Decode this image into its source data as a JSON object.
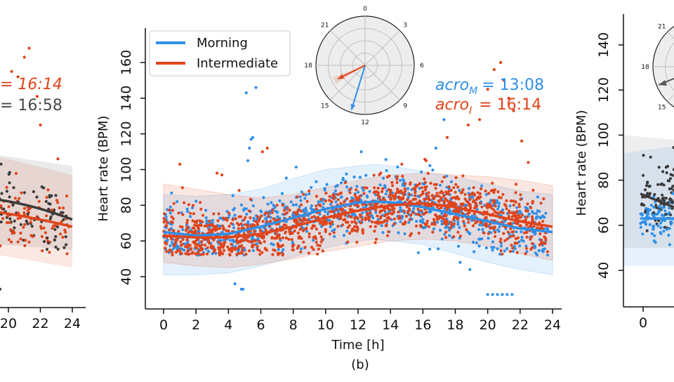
{
  "chart_data": [
    {
      "type": "scatter",
      "panel": "left (partial)",
      "ylabel": "",
      "xlabel": "",
      "x_ticks_visible": [
        "20",
        "22",
        "24"
      ],
      "annotations": [
        {
          "text": "= 16:14",
          "color": "#e0441b"
        },
        {
          "text": "= 16:58",
          "color": "#4a4a4a"
        }
      ],
      "series": [
        {
          "color": "#e0441b",
          "fit_min": 68,
          "fit_max": 82,
          "acrophase": "16:14"
        },
        {
          "color": "#3b3b3b",
          "fit_min": 72,
          "fit_max": 84,
          "acrophase": "16:58"
        }
      ]
    },
    {
      "type": "scatter",
      "panel": "b",
      "caption": "(b)",
      "xlabel": "Time [h]",
      "ylabel": "Heart rate (BPM)",
      "xlim": [
        -1,
        24.5
      ],
      "ylim": [
        27,
        175
      ],
      "x_ticks": [
        0,
        2,
        4,
        6,
        8,
        10,
        12,
        14,
        16,
        18,
        20,
        22,
        24
      ],
      "y_ticks": [
        40,
        60,
        80,
        100,
        120,
        140,
        160
      ],
      "legend": {
        "placement": "top-left",
        "entries": [
          "Morning",
          "Intermediate"
        ]
      },
      "series": [
        {
          "name": "Morning",
          "color": "#2f8fe8",
          "fit": {
            "x": [
              0,
              2,
              4,
              6,
              8,
              10,
              12,
              13.13,
              14,
              16,
              18,
              20,
              22,
              24
            ],
            "y": [
              65,
              63,
              64,
              68,
              73,
              78,
              81.5,
              82,
              81.7,
              79,
              75,
              71,
              67,
              65
            ]
          },
          "band_upper": [
            86,
            85,
            86,
            89,
            95,
            100,
            102,
            103,
            102,
            99,
            96,
            92,
            88,
            86
          ],
          "band_lower": [
            41,
            41,
            42,
            46,
            51,
            56,
            60,
            61,
            60,
            58,
            53,
            48,
            44,
            41
          ],
          "acrophase_label": "acro",
          "acrophase_subscript": "M",
          "acrophase_value": "= 13:08"
        },
        {
          "name": "Intermediate",
          "color": "#e0441b",
          "fit": {
            "x": [
              0,
              2,
              4,
              6,
              8,
              10,
              12,
              14,
              16,
              16.23,
              18,
              20,
              22,
              24
            ],
            "y": [
              63,
              62,
              62,
              64,
              68,
              73,
              77,
              80,
              81,
              81,
              79,
              75,
              71,
              68
            ],
            "_note": null
          },
          "band_upper": [
            92,
            89,
            86,
            84,
            86,
            90,
            94,
            97,
            98,
            98,
            97,
            96,
            94,
            91
          ],
          "band_lower": [
            48,
            46,
            45,
            47,
            50,
            54,
            57,
            60,
            61,
            61,
            60,
            57,
            53,
            49
          ],
          "acrophase_label": "acro",
          "acrophase_subscript": "I",
          "acrophase_value": "= 16:14"
        }
      ],
      "polar_inset": {
        "labels": [
          "0",
          "3",
          "6",
          "9",
          "12",
          "15",
          "18",
          "21"
        ],
        "arrows": [
          {
            "series": "Morning",
            "time_h": 13.13,
            "length": 0.95
          },
          {
            "series": "Intermediate",
            "time_h": 16.23,
            "length": 0.62
          }
        ]
      }
    },
    {
      "type": "scatter",
      "panel": "right (partial)",
      "ylabel": "Heart rate (BPM)",
      "y_ticks": [
        40,
        60,
        80,
        100,
        120,
        140
      ],
      "x_ticks_visible": [
        "0"
      ],
      "polar_labels_visible": [
        "21",
        "18",
        "15"
      ]
    }
  ]
}
